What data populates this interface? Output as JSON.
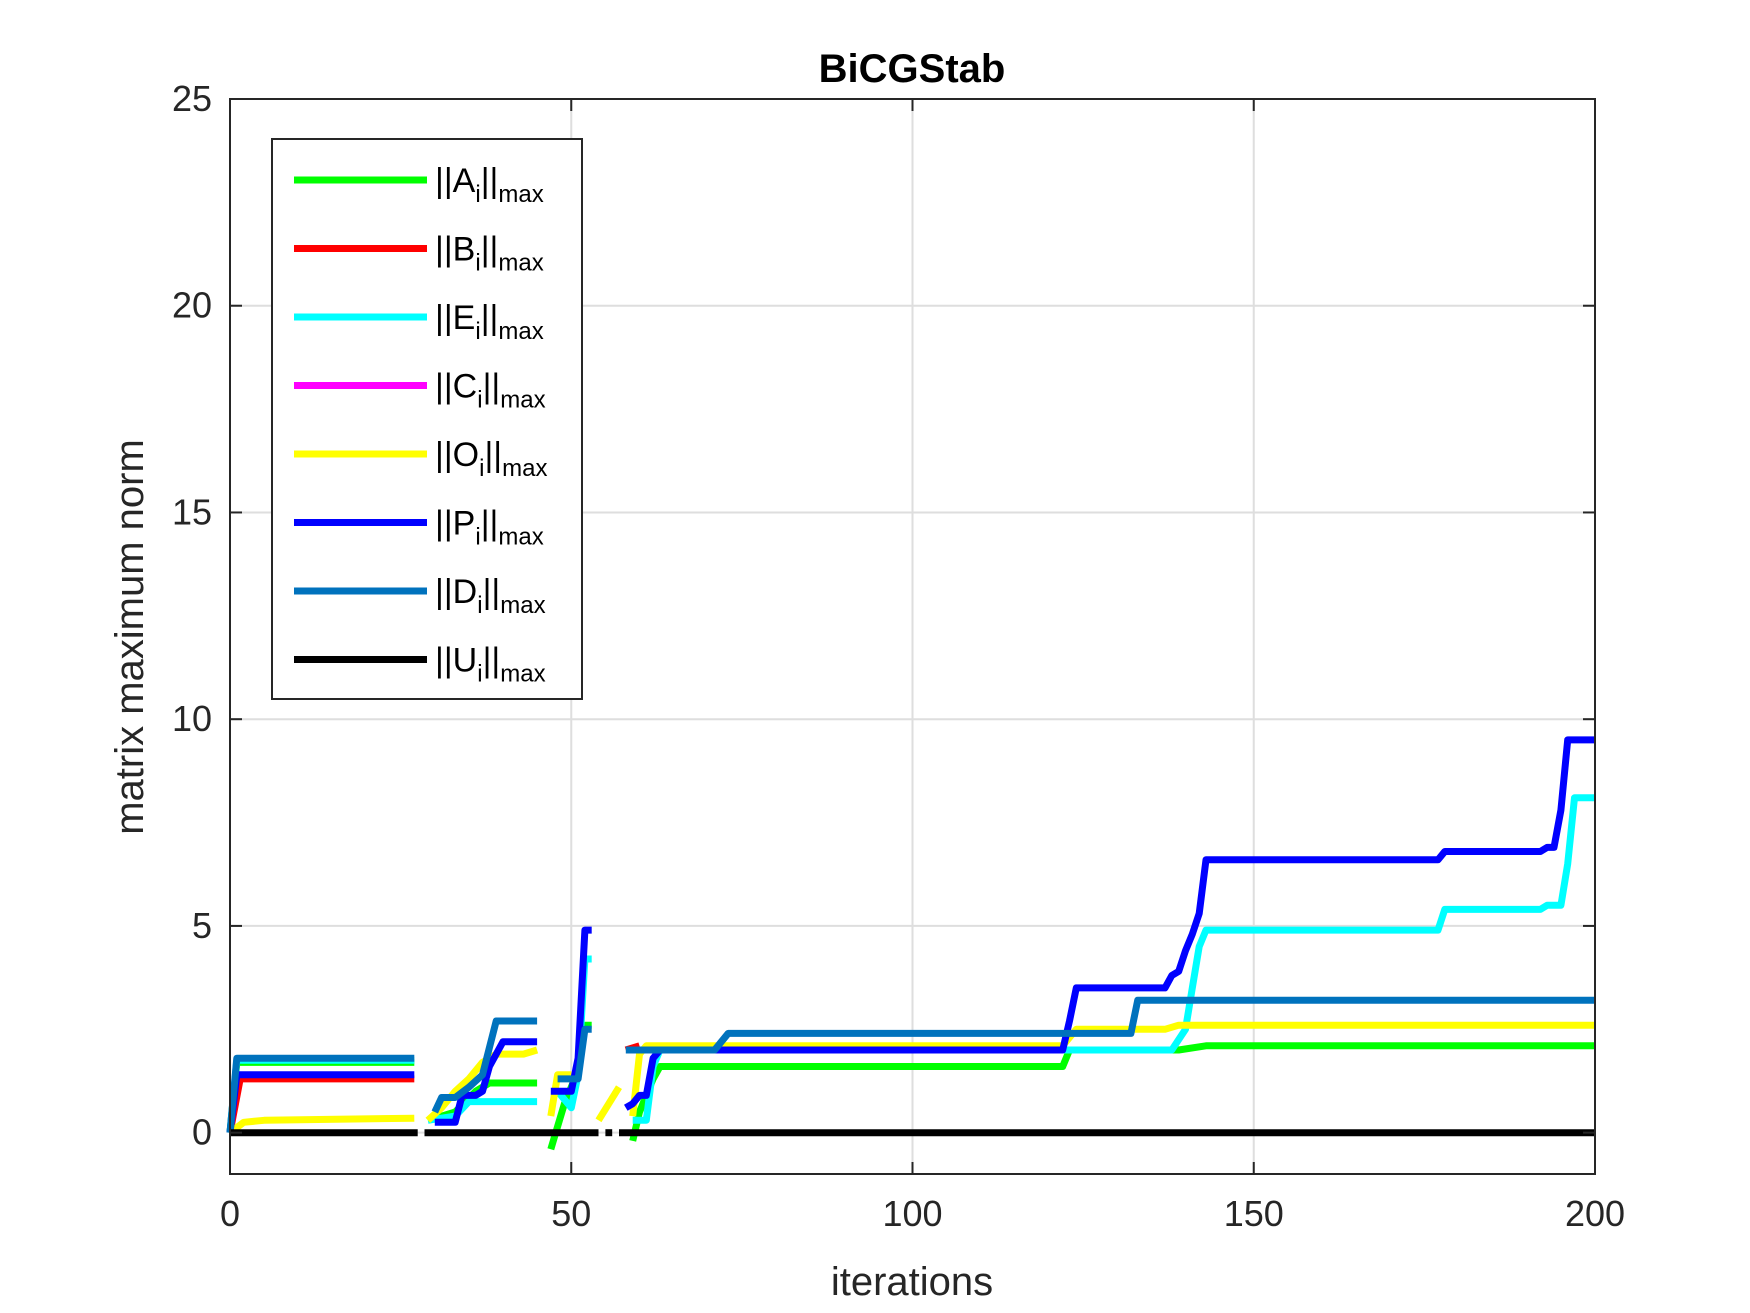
{
  "chart_data": {
    "type": "line",
    "title": "BiCGStab",
    "xlabel": "iterations",
    "ylabel": "matrix maximum norm",
    "xlim": [
      0,
      200
    ],
    "ylim": [
      -1,
      25
    ],
    "xticks": [
      0,
      50,
      100,
      150,
      200
    ],
    "yticks": [
      0,
      5,
      10,
      15,
      20,
      25
    ],
    "grid": true,
    "legend_position": "top-left",
    "series": [
      {
        "name": "A",
        "legend_base": "||A",
        "legend_sub_i": "i",
        "legend_mid": "||",
        "legend_sub_max": "max",
        "color": "#00ff00",
        "segments": [
          [
            [
              0,
              0
            ],
            [
              1,
              1.7
            ],
            [
              27,
              1.7
            ]
          ],
          [
            [
              29,
              0.3
            ],
            [
              33,
              0.5
            ],
            [
              36,
              1.0
            ],
            [
              38,
              1.2
            ],
            [
              45,
              1.2
            ]
          ],
          [
            [
              47,
              -0.4
            ],
            [
              49,
              0.7
            ],
            [
              51,
              1.5
            ],
            [
              52,
              2.6
            ],
            [
              53,
              2.6
            ]
          ],
          [
            [
              59,
              -0.2
            ],
            [
              60,
              0.5
            ],
            [
              62,
              1.3
            ],
            [
              63,
              1.6
            ],
            [
              122,
              1.6
            ],
            [
              123,
              2.0
            ],
            [
              139,
              2.0
            ],
            [
              143,
              2.1
            ],
            [
              200,
              2.1
            ]
          ]
        ]
      },
      {
        "name": "B",
        "legend_base": "||B",
        "legend_sub_i": "i",
        "legend_mid": "||",
        "legend_sub_max": "max",
        "color": "#ff0000",
        "segments": [
          [
            [
              0,
              0
            ],
            [
              1.5,
              1.3
            ],
            [
              27,
              1.3
            ]
          ],
          [
            [
              58,
              2.0
            ],
            [
              60,
              2.1
            ]
          ]
        ]
      },
      {
        "name": "E",
        "legend_base": "||E",
        "legend_sub_i": "i",
        "legend_mid": "||",
        "legend_sub_max": "max",
        "color": "#00ffff",
        "segments": [
          [
            [
              0,
              0
            ],
            [
              1,
              1.75
            ],
            [
              27,
              1.75
            ]
          ],
          [
            [
              29,
              0.3
            ],
            [
              33,
              0.4
            ],
            [
              35,
              0.75
            ],
            [
              45,
              0.75
            ]
          ],
          [
            [
              48,
              1.0
            ],
            [
              50,
              0.6
            ],
            [
              51,
              1.4
            ],
            [
              52,
              4.2
            ],
            [
              53,
              4.2
            ]
          ],
          [
            [
              59,
              0.3
            ],
            [
              61,
              0.3
            ],
            [
              62,
              1.6
            ],
            [
              63,
              2.0
            ],
            [
              122,
              2.0
            ],
            [
              123,
              2.0
            ],
            [
              138,
              2.0
            ],
            [
              140,
              2.5
            ],
            [
              141,
              3.5
            ],
            [
              142,
              4.5
            ],
            [
              143,
              4.9
            ],
            [
              177,
              4.9
            ],
            [
              178,
              5.4
            ],
            [
              192,
              5.4
            ],
            [
              193,
              5.5
            ],
            [
              195,
              5.5
            ],
            [
              196,
              6.5
            ],
            [
              197,
              8.1
            ],
            [
              200,
              8.1
            ]
          ]
        ]
      },
      {
        "name": "C",
        "legend_base": "||C",
        "legend_sub_i": "i",
        "legend_mid": "||",
        "legend_sub_max": "max",
        "color": "#ff00ff",
        "segments": []
      },
      {
        "name": "O",
        "legend_base": "||O",
        "legend_sub_i": "i",
        "legend_mid": "||",
        "legend_sub_max": "max",
        "color": "#ffff00",
        "segments": [
          [
            [
              0,
              0
            ],
            [
              2,
              0.25
            ],
            [
              5,
              0.3
            ],
            [
              27,
              0.35
            ]
          ],
          [
            [
              29,
              0.3
            ],
            [
              31,
              0.6
            ],
            [
              33,
              1.0
            ],
            [
              35,
              1.3
            ],
            [
              37,
              1.7
            ],
            [
              39,
              1.9
            ],
            [
              43,
              1.9
            ],
            [
              45,
              2.0
            ]
          ],
          [
            [
              47,
              0.4
            ],
            [
              48,
              1.4
            ],
            [
              50,
              1.4
            ]
          ],
          [
            [
              54,
              0.3
            ],
            [
              57,
              1.1
            ]
          ],
          [
            [
              59,
              0.4
            ],
            [
              60,
              1.9
            ],
            [
              61,
              2.1
            ],
            [
              122,
              2.1
            ],
            [
              124,
              2.5
            ],
            [
              137,
              2.5
            ],
            [
              139,
              2.6
            ],
            [
              200,
              2.6
            ]
          ]
        ]
      },
      {
        "name": "P",
        "legend_base": "||P",
        "legend_sub_i": "i",
        "legend_mid": "||",
        "legend_sub_max": "max",
        "color": "#0000ff",
        "segments": [
          [
            [
              0,
              0
            ],
            [
              1,
              1.4
            ],
            [
              27,
              1.4
            ]
          ],
          [
            [
              30,
              0.25
            ],
            [
              33,
              0.25
            ],
            [
              34,
              0.9
            ],
            [
              36,
              0.9
            ],
            [
              37,
              1.0
            ],
            [
              38,
              1.6
            ],
            [
              40,
              2.2
            ],
            [
              45,
              2.2
            ]
          ],
          [
            [
              47,
              1.0
            ],
            [
              50,
              1.0
            ],
            [
              51,
              1.8
            ],
            [
              52,
              4.9
            ],
            [
              53,
              4.9
            ]
          ],
          [
            [
              58,
              0.6
            ],
            [
              59,
              0.7
            ],
            [
              60,
              0.9
            ],
            [
              61,
              0.9
            ],
            [
              62,
              1.8
            ],
            [
              63,
              2.0
            ],
            [
              122,
              2.0
            ],
            [
              123,
              2.7
            ],
            [
              124,
              3.5
            ],
            [
              137,
              3.5
            ],
            [
              138,
              3.8
            ],
            [
              139,
              3.9
            ],
            [
              140,
              4.4
            ],
            [
              141,
              4.8
            ],
            [
              142,
              5.3
            ],
            [
              143,
              6.6
            ],
            [
              177,
              6.6
            ],
            [
              178,
              6.8
            ],
            [
              192,
              6.8
            ],
            [
              193,
              6.9
            ],
            [
              194,
              6.9
            ],
            [
              195,
              7.8
            ],
            [
              196,
              9.5
            ],
            [
              200,
              9.5
            ]
          ]
        ]
      },
      {
        "name": "D",
        "legend_base": "||D",
        "legend_sub_i": "i",
        "legend_mid": "||",
        "legend_sub_max": "max",
        "color": "#0072bd",
        "segments": [
          [
            [
              0,
              0
            ],
            [
              1,
              1.8
            ],
            [
              27,
              1.8
            ]
          ],
          [
            [
              30,
              0.5
            ],
            [
              31,
              0.85
            ],
            [
              33,
              0.85
            ],
            [
              35,
              1.1
            ],
            [
              37,
              1.4
            ],
            [
              39,
              2.7
            ],
            [
              45,
              2.7
            ]
          ],
          [
            [
              48,
              1.3
            ],
            [
              51,
              1.3
            ],
            [
              52,
              2.5
            ],
            [
              53,
              2.5
            ]
          ],
          [
            [
              58,
              2.0
            ],
            [
              61,
              2.0
            ],
            [
              62,
              2.0
            ],
            [
              71,
              2.0
            ],
            [
              73,
              2.4
            ],
            [
              132,
              2.4
            ],
            [
              133,
              3.2
            ],
            [
              135,
              3.2
            ],
            [
              200,
              3.2
            ]
          ]
        ]
      },
      {
        "name": "U",
        "legend_base": "||U",
        "legend_sub_i": "i",
        "legend_mid": "||",
        "legend_sub_max": "max",
        "color": "#000000",
        "segments": [
          [
            [
              0,
              0
            ],
            [
              27.5,
              0
            ]
          ],
          [
            [
              28.5,
              0
            ],
            [
              54,
              0
            ]
          ],
          [
            [
              55,
              0
            ],
            [
              56,
              0
            ]
          ],
          [
            [
              57,
              0
            ],
            [
              200,
              0
            ]
          ]
        ]
      }
    ]
  }
}
